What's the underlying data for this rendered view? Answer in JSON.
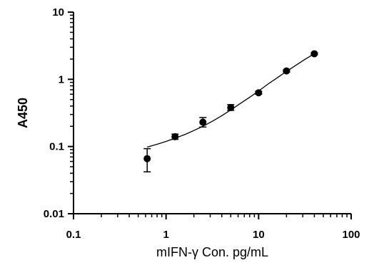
{
  "chart_data": {
    "type": "scatter",
    "title": "",
    "xlabel": "mIFN-γ Con. pg/mL",
    "ylabel": "A450",
    "xscale": "log",
    "yscale": "log",
    "xlim": [
      0.1,
      100
    ],
    "ylim": [
      0.01,
      10
    ],
    "grid": false,
    "legend": "none",
    "x_ticks": [
      {
        "value": 0.1,
        "label": "0.1"
      },
      {
        "value": 1,
        "label": "1"
      },
      {
        "value": 10,
        "label": "10"
      },
      {
        "value": 100,
        "label": "100"
      }
    ],
    "y_ticks": [
      {
        "value": 0.01,
        "label": "0.01"
      },
      {
        "value": 0.1,
        "label": "0.1"
      },
      {
        "value": 1,
        "label": "1"
      },
      {
        "value": 10,
        "label": "10"
      }
    ],
    "points": [
      {
        "x": 0.625,
        "y": 0.066,
        "err_low": 0.042,
        "err_high": 0.093
      },
      {
        "x": 1.25,
        "y": 0.14,
        "err_low": 0.128,
        "err_high": 0.153
      },
      {
        "x": 2.5,
        "y": 0.23,
        "err_low": 0.195,
        "err_high": 0.27
      },
      {
        "x": 5,
        "y": 0.38,
        "err_low": 0.345,
        "err_high": 0.42
      },
      {
        "x": 10,
        "y": 0.63,
        "err_low": 0.6,
        "err_high": 0.66
      },
      {
        "x": 20,
        "y": 1.33,
        "err_low": 1.28,
        "err_high": 1.38
      },
      {
        "x": 40,
        "y": 2.4,
        "err_low": 2.33,
        "err_high": 2.47
      }
    ],
    "fit_curve": {
      "x": [
        0.625,
        0.8,
        1,
        1.25,
        1.6,
        2,
        2.5,
        3.2,
        4,
        5,
        6.4,
        8,
        10,
        12.8,
        16,
        20,
        25,
        32,
        40
      ],
      "y": [
        0.098,
        0.108,
        0.119,
        0.133,
        0.151,
        0.173,
        0.2,
        0.24,
        0.287,
        0.35,
        0.44,
        0.54,
        0.67,
        0.86,
        1.06,
        1.31,
        1.6,
        2.0,
        2.4
      ]
    },
    "colors": {
      "marker": "#000000",
      "line": "#000000",
      "axis": "#000000"
    }
  }
}
